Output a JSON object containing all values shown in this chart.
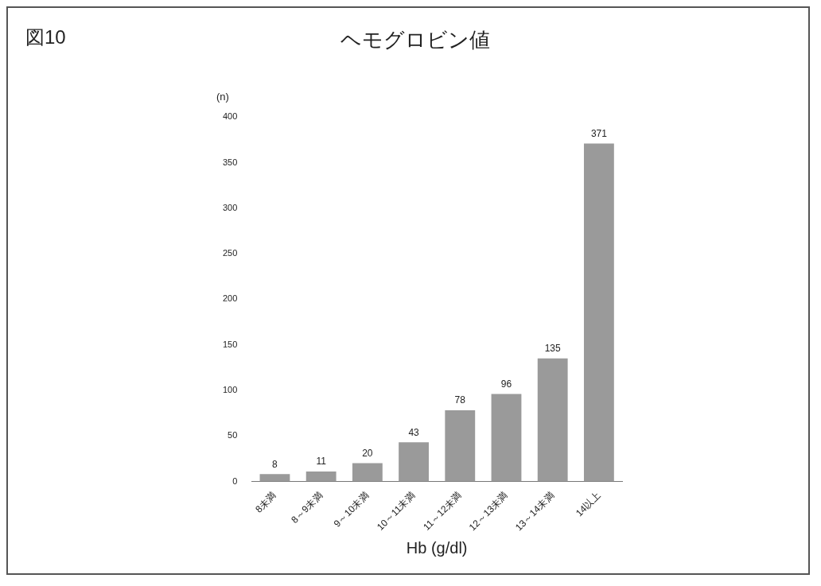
{
  "chart_data": {
    "type": "bar",
    "title": "ヘモグロビン値",
    "xlabel": "Hb (g/dl)",
    "ylabel": "(n)",
    "annotations": [
      "図10"
    ],
    "categories": [
      "8未満",
      "8～9未満",
      "9～10未満",
      "10～11未満",
      "11～12未満",
      "12～13未満",
      "13～14未満",
      "14以上"
    ],
    "values": [
      8,
      11,
      20,
      43,
      78,
      96,
      135,
      371
    ],
    "color": "#9a9a9a",
    "ylim": [
      0,
      400
    ],
    "yticks": [
      0,
      50,
      100,
      150,
      200,
      250,
      300,
      350,
      400
    ],
    "grid": false,
    "data_labels": true
  }
}
